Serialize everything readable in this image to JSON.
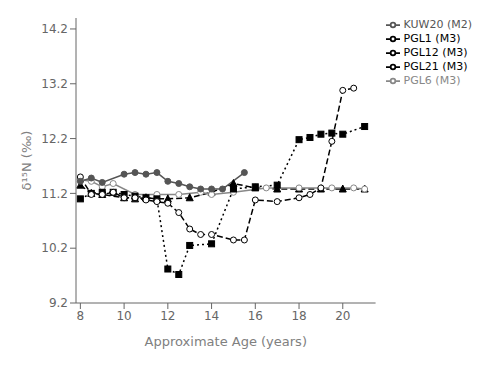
{
  "chart_data": {
    "type": "line",
    "xlabel": "Approximate Age (years)",
    "ylabel": "δ¹⁵N (‰)",
    "xlim": [
      7.8,
      21.5
    ],
    "ylim": [
      9.2,
      14.4
    ],
    "xticks": [
      8.0,
      10.0,
      12.0,
      14.0,
      16.0,
      18.0,
      20.0
    ],
    "yticks": [
      9.2,
      10.2,
      11.2,
      12.2,
      13.2,
      14.2
    ],
    "legend": "upper right",
    "grid": false,
    "series": [
      {
        "name": "PGL1 (M3)",
        "color": "#000000",
        "marker": "triangle",
        "line_style": "dashed",
        "x": [
          8.0,
          8.5,
          9.0,
          10.0,
          10.5,
          11.0,
          11.5,
          12.0,
          13.0,
          14.0,
          15.0,
          16.0,
          17.0,
          18.0,
          19.0,
          20.0,
          21.0
        ],
        "values": [
          11.35,
          11.2,
          11.18,
          11.12,
          11.1,
          11.12,
          11.1,
          11.1,
          11.12,
          11.22,
          11.38,
          11.3,
          11.28,
          11.28,
          11.28,
          11.28,
          11.28
        ]
      },
      {
        "name": "PGL6 (M3)",
        "color": "#888888",
        "marker": "open_circle",
        "line_style": "solid",
        "x": [
          8.0,
          8.5,
          9.0,
          9.5,
          10.5,
          11.5,
          12.5,
          13.5,
          14.0,
          15.0,
          16.5,
          18.0,
          19.5,
          20.5,
          21.0
        ],
        "values": [
          11.45,
          11.42,
          11.32,
          11.38,
          11.18,
          11.18,
          11.18,
          11.22,
          11.18,
          11.22,
          11.3,
          11.3,
          11.3,
          11.3,
          11.28
        ]
      },
      {
        "name": "PGL12 (M3)",
        "color": "#000000",
        "marker": "square",
        "line_style": "dotted",
        "x": [
          8.0,
          8.5,
          9.0,
          9.5,
          10.0,
          10.5,
          11.0,
          11.5,
          12.0,
          12.5,
          13.0,
          14.0,
          15.0,
          16.0,
          17.0,
          18.0,
          18.5,
          19.0,
          19.5,
          20.0,
          21.0
        ],
        "values": [
          11.1,
          11.2,
          11.22,
          11.22,
          11.18,
          11.15,
          11.12,
          11.1,
          9.82,
          9.72,
          10.25,
          10.28,
          11.28,
          11.32,
          11.35,
          12.18,
          12.22,
          12.28,
          12.3,
          12.28,
          12.42
        ]
      },
      {
        "name": "PGL21 (M3)",
        "color": "#000000",
        "marker": "open_circle",
        "line_style": "dashed",
        "x": [
          8.0,
          8.5,
          9.0,
          9.5,
          10.0,
          10.5,
          11.0,
          11.5,
          12.0,
          12.5,
          13.0,
          13.5,
          14.0,
          15.0,
          15.5,
          16.0,
          17.0,
          18.0,
          18.5,
          19.0,
          19.5,
          20.0,
          20.5
        ],
        "values": [
          11.5,
          11.18,
          11.18,
          11.22,
          11.12,
          11.12,
          11.08,
          11.05,
          11.02,
          10.85,
          10.55,
          10.45,
          10.45,
          10.35,
          10.35,
          11.08,
          11.05,
          11.12,
          11.18,
          11.3,
          12.15,
          13.08,
          13.12
        ]
      },
      {
        "name": "KUW20 (M2)",
        "color": "#555555",
        "marker": "circle",
        "line_style": "solid",
        "x": [
          8.0,
          8.5,
          9.0,
          10.0,
          10.5,
          11.0,
          11.5,
          12.0,
          12.5,
          13.0,
          13.5,
          14.0,
          14.5,
          15.5
        ],
        "values": [
          11.42,
          11.48,
          11.4,
          11.55,
          11.58,
          11.55,
          11.58,
          11.42,
          11.38,
          11.32,
          11.28,
          11.28,
          11.28,
          11.58
        ]
      }
    ]
  }
}
